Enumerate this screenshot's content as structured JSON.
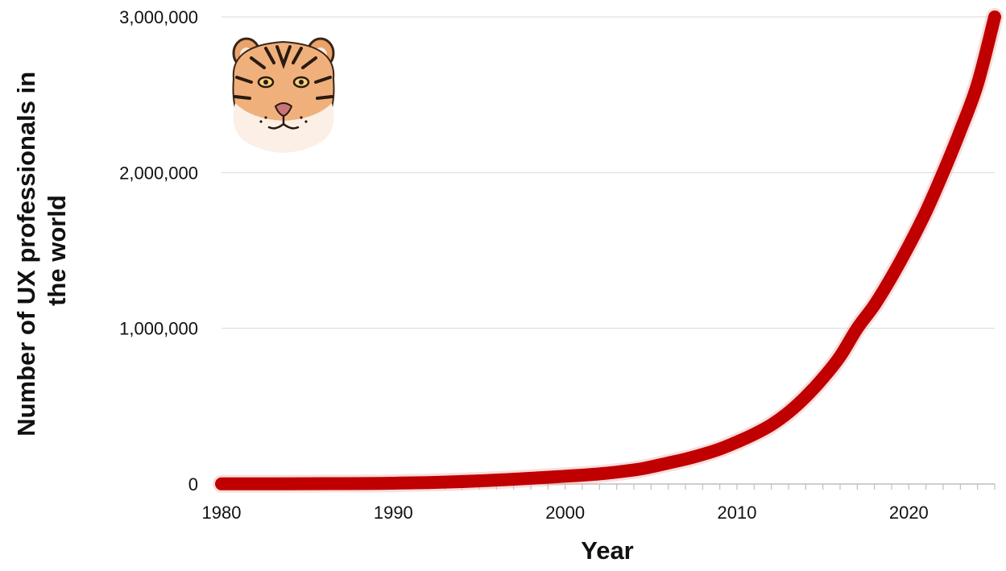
{
  "chart_data": {
    "type": "line",
    "title": "",
    "xlabel": "Year",
    "ylabel": "Number of UX professionals in the world",
    "xlim": [
      1980,
      2025
    ],
    "ylim": [
      0,
      3000000
    ],
    "x_ticks": [
      1980,
      1990,
      2000,
      2010,
      2020
    ],
    "x_tick_labels": [
      "1980",
      "1990",
      "2000",
      "2010",
      "2020"
    ],
    "y_ticks": [
      0,
      1000000,
      2000000,
      3000000
    ],
    "y_tick_labels": [
      "0",
      "1,000,000",
      "2,000,000",
      "3,000,000"
    ],
    "grid": true,
    "legend": "none",
    "series": [
      {
        "color": "#c00000",
        "points": [
          [
            1980,
            1000
          ],
          [
            1985,
            2000
          ],
          [
            1990,
            5000
          ],
          [
            1995,
            20000
          ],
          [
            2000,
            50000
          ],
          [
            2002,
            65000
          ],
          [
            2004,
            90000
          ],
          [
            2005,
            110000
          ],
          [
            2006,
            135000
          ],
          [
            2007,
            160000
          ],
          [
            2008,
            190000
          ],
          [
            2009,
            225000
          ],
          [
            2010,
            270000
          ],
          [
            2011,
            320000
          ],
          [
            2012,
            380000
          ],
          [
            2013,
            460000
          ],
          [
            2014,
            560000
          ],
          [
            2015,
            680000
          ],
          [
            2016,
            820000
          ],
          [
            2017,
            1000000
          ],
          [
            2018,
            1150000
          ],
          [
            2019,
            1330000
          ],
          [
            2020,
            1530000
          ],
          [
            2021,
            1750000
          ],
          [
            2022,
            2000000
          ],
          [
            2023,
            2270000
          ],
          [
            2024,
            2570000
          ],
          [
            2025,
            3000000
          ]
        ]
      }
    ]
  },
  "decoration": {
    "image": "tiger-face-illustration"
  }
}
